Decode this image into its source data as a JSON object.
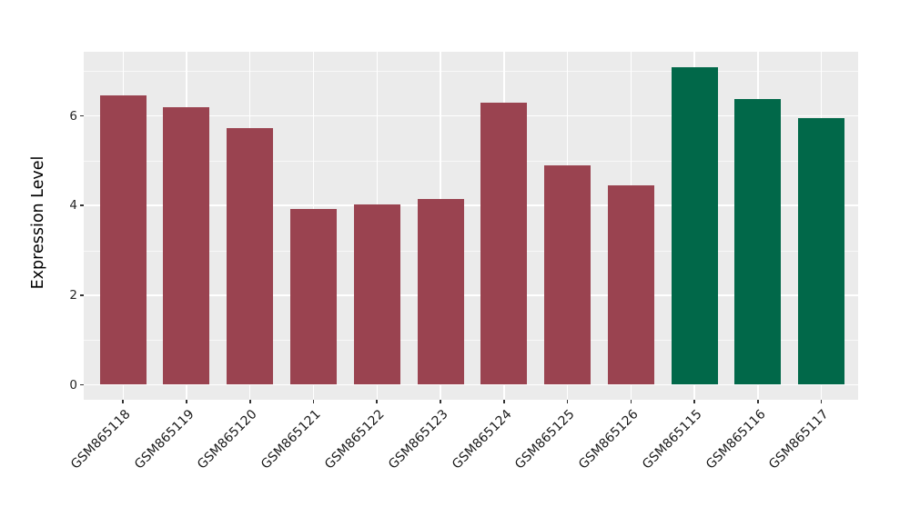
{
  "chart_data": {
    "type": "bar",
    "title": "",
    "xlabel": "",
    "ylabel": "Expression Level",
    "categories": [
      "GSM865118",
      "GSM865119",
      "GSM865120",
      "GSM865121",
      "GSM865122",
      "GSM865123",
      "GSM865124",
      "GSM865125",
      "GSM865126",
      "GSM865115",
      "GSM865116",
      "GSM865117"
    ],
    "values": [
      6.45,
      6.2,
      5.72,
      3.92,
      4.02,
      4.15,
      6.3,
      4.89,
      4.45,
      7.08,
      6.37,
      5.95
    ],
    "bar_colors": [
      "#9A4350",
      "#9A4350",
      "#9A4350",
      "#9A4350",
      "#9A4350",
      "#9A4350",
      "#9A4350",
      "#9A4350",
      "#9A4350",
      "#016849",
      "#016849",
      "#016849"
    ],
    "group_colors": {
      "maroon_group": "#9A4350",
      "green_group": "#016849"
    },
    "ylim": [
      -0.33,
      7.43
    ],
    "yticks_major": [
      0,
      2,
      4,
      6
    ],
    "yticks_minor": [
      1,
      3,
      5,
      7
    ],
    "ytick_labels": [
      "0",
      "2",
      "4",
      "6"
    ],
    "grid": "on",
    "gridline_color": "#FFFFFF",
    "panel_background": "#EBEBEB",
    "figure_background": "#FFFFFF",
    "legend_position": "none",
    "bar_orientation": "vertical"
  }
}
